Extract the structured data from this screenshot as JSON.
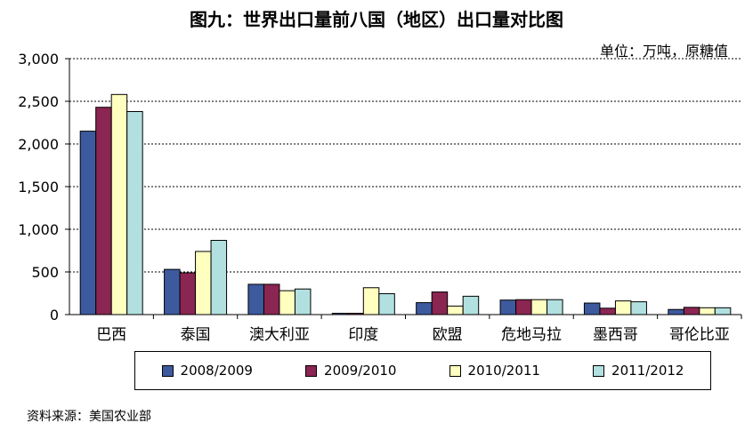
{
  "chart_data": {
    "type": "bar",
    "title": "图九：世界出口量前八国（地区）出口量对比图",
    "unit_note": "单位：万吨，原糖值",
    "source": "资料来源：美国农业部",
    "categories": [
      "巴西",
      "泰国",
      "澳大利亚",
      "印度",
      "欧盟",
      "危地马拉",
      "墨西哥",
      "哥伦比亚"
    ],
    "series": [
      {
        "name": "2008/2009",
        "color": "#3d5a9e",
        "values": [
          2150,
          530,
          355,
          15,
          140,
          170,
          135,
          60
        ]
      },
      {
        "name": "2009/2010",
        "color": "#8b2552",
        "values": [
          2430,
          490,
          355,
          15,
          265,
          175,
          75,
          85
        ]
      },
      {
        "name": "2010/2011",
        "color": "#ffffc0",
        "values": [
          2580,
          740,
          280,
          315,
          100,
          175,
          160,
          80
        ]
      },
      {
        "name": "2011/2012",
        "color": "#b2e0e0",
        "values": [
          2380,
          870,
          300,
          245,
          215,
          175,
          150,
          80
        ]
      }
    ],
    "ylim": [
      0,
      3000
    ],
    "yticks": [
      0,
      500,
      1000,
      1500,
      2000,
      2500,
      3000
    ],
    "ytick_labels": [
      "0",
      "500",
      "1,000",
      "1,500",
      "2,000",
      "2,500",
      "3,000"
    ],
    "grid": "horizontal dashed",
    "legend_position": "bottom"
  }
}
